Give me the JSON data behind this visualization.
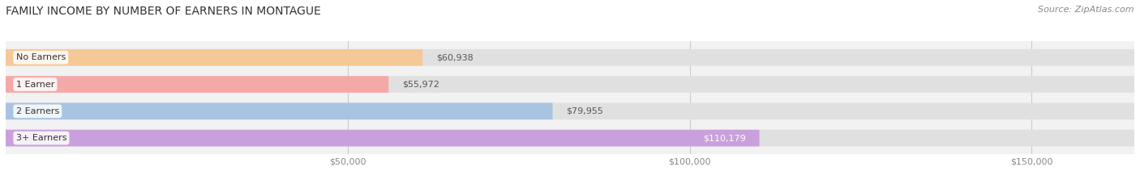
{
  "title": "FAMILY INCOME BY NUMBER OF EARNERS IN MONTAGUE",
  "source": "Source: ZipAtlas.com",
  "categories": [
    "No Earners",
    "1 Earner",
    "2 Earners",
    "3+ Earners"
  ],
  "values": [
    60938,
    55972,
    79955,
    110179
  ],
  "labels": [
    "$60,938",
    "$55,972",
    "$79,955",
    "$110,179"
  ],
  "bar_colors": [
    "#f5c897",
    "#f4a9a8",
    "#a8c4e0",
    "#c9a0dc"
  ],
  "label_colors": [
    "#555555",
    "#555555",
    "#555555",
    "#ffffff"
  ],
  "xlim_min": 0,
  "xlim_max": 165000,
  "xticks": [
    50000,
    100000,
    150000
  ],
  "xtick_labels": [
    "$50,000",
    "$100,000",
    "$150,000"
  ],
  "title_fontsize": 10,
  "source_fontsize": 8,
  "bar_label_fontsize": 8,
  "category_fontsize": 8,
  "tick_fontsize": 8,
  "bar_height": 0.62,
  "background_color": "#ffffff",
  "plot_bg_color": "#f2f2f2"
}
